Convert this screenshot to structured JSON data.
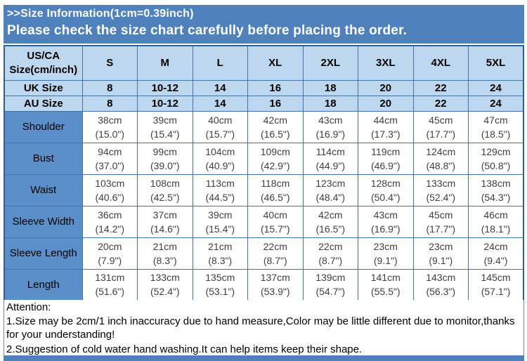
{
  "banner": {
    "line1": ">>Size Information(1cm=0.39inch)",
    "line2": "Please check the size chart carefully before placing the order."
  },
  "colors": {
    "banner_blue": "#4f81bd",
    "header_light_blue": "#bdd7ee",
    "row_label_blue": "#5b8fc9",
    "border_blue": "#4273a8",
    "cell_text_gray": "#404040",
    "banner_text": "#ffffff"
  },
  "size_table": {
    "header_label_lines": [
      "US/CA",
      "Size(cm/inch)"
    ],
    "columns": [
      "S",
      "M",
      "L",
      "XL",
      "2XL",
      "3XL",
      "4XL",
      "5XL"
    ],
    "uk_row": {
      "label": "UK Size",
      "values": [
        "8",
        "10-12",
        "14",
        "16",
        "18",
        "20",
        "22",
        "24"
      ]
    },
    "au_row": {
      "label": "AU Size",
      "values": [
        "8",
        "10-12",
        "14",
        "16",
        "18",
        "20",
        "22",
        "24"
      ]
    },
    "measurement_rows": [
      {
        "label": "Shoulder",
        "cm": [
          "38cm",
          "39cm",
          "40cm",
          "42cm",
          "43cm",
          "44cm",
          "45cm",
          "47cm"
        ],
        "inch": [
          "(15.0\")",
          "(15.4\")",
          "(15.7\")",
          "(16.5\")",
          "(16.9\")",
          "(17.3\")",
          "(17.7\")",
          "(18.5\")"
        ]
      },
      {
        "label": "Bust",
        "cm": [
          "94cm",
          "99cm",
          "104cm",
          "109cm",
          "114cm",
          "119cm",
          "124cm",
          "129cm"
        ],
        "inch": [
          "(37.0\")",
          "(39.0\")",
          "(40.9\")",
          "(42.9\")",
          "(44.9\")",
          "(46.9\")",
          "(48.8\")",
          "(50.8\")"
        ]
      },
      {
        "label": "Waist",
        "cm": [
          "103cm",
          "108cm",
          "113cm",
          "118cm",
          "123cm",
          "128cm",
          "133cm",
          "138cm"
        ],
        "inch": [
          "(40.6\")",
          "(42.5\")",
          "(44.5\")",
          "(46.5\")",
          "(48.4\")",
          "(50.4\")",
          "(52.4\")",
          "(54.3\")"
        ]
      },
      {
        "label": "Sleeve Width",
        "cm": [
          "36cm",
          "37cm",
          "39cm",
          "40cm",
          "42cm",
          "43cm",
          "45cm",
          "46cm"
        ],
        "inch": [
          "(14.2\")",
          "(14.6\")",
          "(15.4\")",
          "(15.7\")",
          "(16.5\")",
          "(16.9\")",
          "(17.7\")",
          "(18.1\")"
        ]
      },
      {
        "label": "Sleeve Length",
        "cm": [
          "20cm",
          "21cm",
          "21cm",
          "22cm",
          "22cm",
          "23cm",
          "23cm",
          "24cm"
        ],
        "inch": [
          "(7.9\")",
          "(8.3\")",
          "(8.3\")",
          "(8.7\")",
          "(8.7\")",
          "(9.1\")",
          "(9.1\")",
          "(9.4\")"
        ]
      },
      {
        "label": "Length",
        "cm": [
          "131cm",
          "133cm",
          "135cm",
          "137cm",
          "139cm",
          "141cm",
          "143cm",
          "145cm"
        ],
        "inch": [
          "(51.6\")",
          "(52.4\")",
          "(53.1\")",
          "(53.9\")",
          "(54.7\")",
          "(55.5\")",
          "(56.3\")",
          "(57.1\")"
        ]
      }
    ]
  },
  "attention": {
    "title": "Attention:",
    "note1": "1.Size may be 2cm/1 inch inaccuracy due to hand measure,Color may be little different due to monitor,thanks for your understanding!",
    "note2": "2.Suggestion of cold water hand washing.It can help items keep their shape."
  }
}
